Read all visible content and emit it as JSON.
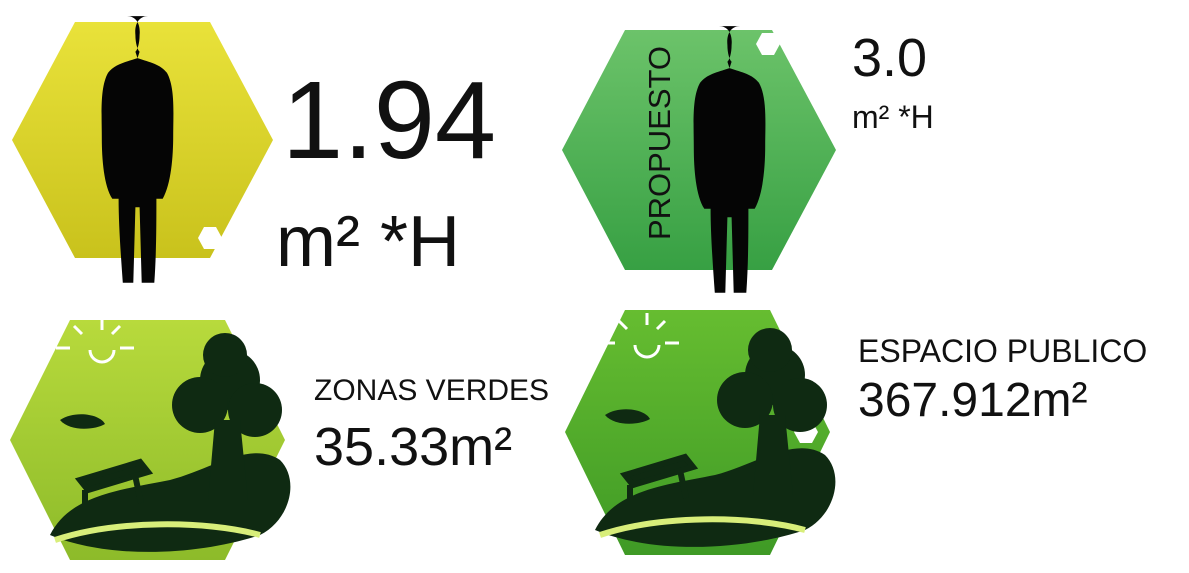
{
  "panels": [
    {
      "value": "1.94",
      "unit": "m² *H"
    },
    {
      "label": "PROPUESTO",
      "value": "3.0",
      "unit": "m² *H"
    },
    {
      "label": "ZONAS VERDES",
      "value": "35.33m²"
    },
    {
      "label": "ESPACIO PUBLICO",
      "value": "367.912m²"
    }
  ]
}
